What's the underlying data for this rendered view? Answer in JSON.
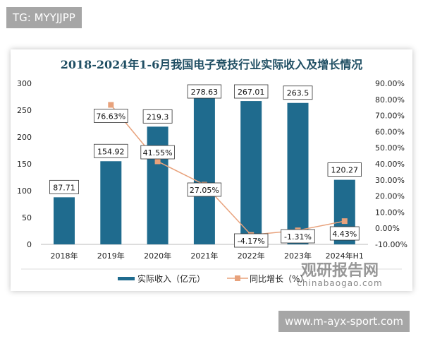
{
  "header_tag": "TG: MYYJJPP",
  "footer_tag": "www.m-ayx-sport.com",
  "watermark": {
    "cn": "观研报告网",
    "en": "chinabaogao.com"
  },
  "chart_data": {
    "type": "bar+line",
    "title": "2018-2024年1-6月我国电子竞技行业实际收入及增长情况",
    "categories": [
      "2018年",
      "2019年",
      "2020年",
      "2021年",
      "2022年",
      "2023年",
      "2024年H1"
    ],
    "series": [
      {
        "name": "实际收入（亿元）",
        "type": "bar",
        "axis": "left",
        "color": "#1f6b8e",
        "values": [
          87.71,
          154.92,
          219.3,
          278.63,
          267.01,
          263.5,
          120.27
        ],
        "labels": [
          "87.71",
          "154.92",
          "219.3",
          "278.63",
          "267.01",
          "263.5",
          "120.27"
        ]
      },
      {
        "name": "同比增长（%）",
        "type": "line",
        "axis": "right",
        "color": "#e8a27c",
        "values": [
          null,
          76.63,
          41.55,
          27.05,
          -4.17,
          -1.31,
          4.43
        ],
        "labels": [
          "",
          "76.63%",
          "41.55%",
          "27.05%",
          "-4.17%",
          "-1.31%",
          "4.43%"
        ]
      }
    ],
    "y_left": {
      "range": [
        0,
        300
      ],
      "ticks": [
        "0",
        "50",
        "100",
        "150",
        "200",
        "250",
        "300"
      ]
    },
    "y_right": {
      "range": [
        -10,
        90
      ],
      "ticks": [
        "-10.00%",
        "0.00%",
        "10.00%",
        "20.00%",
        "30.00%",
        "40.00%",
        "50.00%",
        "60.00%",
        "70.00%",
        "80.00%",
        "90.00%"
      ]
    },
    "grid": false,
    "legend": "bottom"
  }
}
